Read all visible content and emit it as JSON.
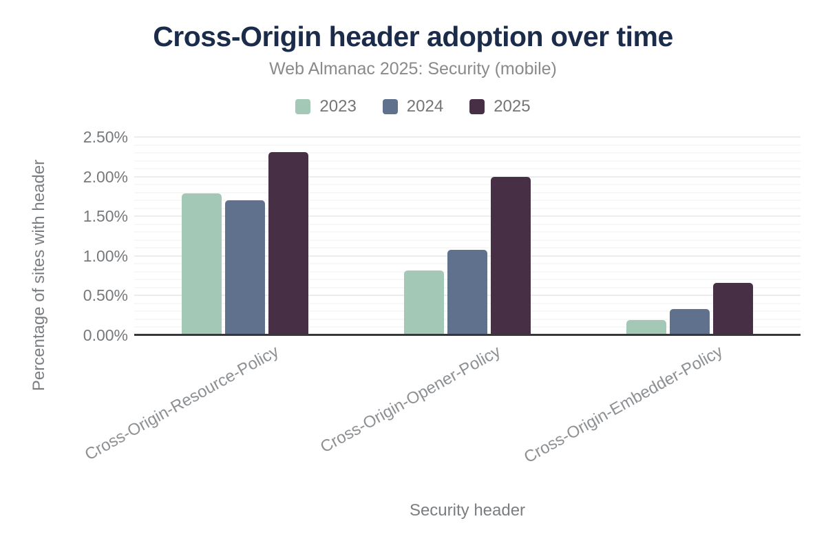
{
  "chart_data": {
    "type": "bar",
    "title": "Cross-Origin header adoption over time",
    "subtitle": "Web Almanac 2025: Security (mobile)",
    "xlabel": "Security header",
    "ylabel": "Percentage of sites with header",
    "categories": [
      "Cross-Origin-Resource-Policy",
      "Cross-Origin-Opener-Policy",
      "Cross-Origin-Embedder-Policy"
    ],
    "series": [
      {
        "name": "2023",
        "color": "#a4c8b6",
        "values": [
          1.79,
          0.82,
          0.19
        ]
      },
      {
        "name": "2024",
        "color": "#60718d",
        "values": [
          1.7,
          1.08,
          0.33
        ]
      },
      {
        "name": "2025",
        "color": "#473046",
        "values": [
          2.31,
          2.0,
          0.66
        ]
      }
    ],
    "ylim": [
      0,
      2.5
    ],
    "y_ticks": [
      "0.00%",
      "0.50%",
      "1.00%",
      "1.50%",
      "2.00%",
      "2.50%"
    ],
    "y_tick_step": 0.5,
    "grid": {
      "minor_step": 0.1,
      "major_step": 0.5,
      "grid_on": true
    },
    "legend_position": "top",
    "colors": {
      "title": "#1b2b4a",
      "subtitle": "#8a8a8a",
      "axis_line": "#35373c",
      "tick_label": "#76797c",
      "category_label": "#8d9093"
    }
  }
}
